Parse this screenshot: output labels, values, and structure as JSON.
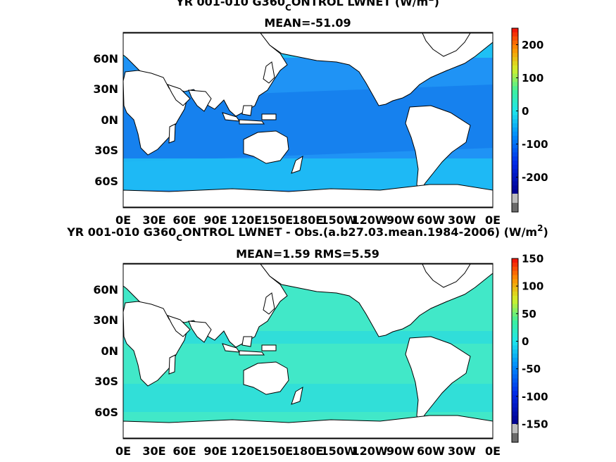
{
  "chart_data": [
    {
      "type": "heatmap",
      "title_prefix": "YR 001-010 G360",
      "title_sub": "C",
      "title_suffix": "ONTROL  LWNET (W/m",
      "title_sup": "2",
      "title_close": ")",
      "subtitle": "MEAN=-51.09",
      "x_ticks": [
        "0E",
        "30E",
        "60E",
        "90E",
        "120E",
        "150E",
        "180E",
        "150W",
        "120W",
        "90W",
        "60W",
        "30W",
        "0E"
      ],
      "y_ticks": [
        "60N",
        "30N",
        "0N",
        "30S",
        "60S"
      ],
      "colorbar": {
        "range": [
          -250,
          250
        ],
        "ticks": [
          {
            "value": 200,
            "label": "200"
          },
          {
            "value": 100,
            "label": "100"
          },
          {
            "value": 0,
            "label": "0"
          },
          {
            "value": -100,
            "label": "-100"
          },
          {
            "value": -200,
            "label": "-200"
          }
        ]
      },
      "colors": {
        "ocean_main": "#1f93f5",
        "ocean_light": "#1ec0f5",
        "ocean_dark": "#0f73e8",
        "land": "#ffffff"
      },
      "regions": [
        {
          "band": "Arctic / high northern latitudes",
          "approx_value": -60
        },
        {
          "band": "Mid and low latitude oceans",
          "approx_value": -75
        },
        {
          "band": "Southern Ocean",
          "approx_value": -45
        },
        {
          "band": "Antarctic margin",
          "approx_value": -40
        }
      ]
    },
    {
      "type": "heatmap",
      "title_prefix": "YR 001-010 G360",
      "title_sub": "C",
      "title_suffix": "ONTROL LWNET - Obs.(a.b27.03.mean.1984-2006) (W/m",
      "title_sup": "2",
      "title_close": ")",
      "subtitle": "MEAN=1.59 RMS=5.59",
      "x_ticks": [
        "0E",
        "30E",
        "60E",
        "90E",
        "120E",
        "150E",
        "180E",
        "150W",
        "120W",
        "90W",
        "60W",
        "30W",
        "0E"
      ],
      "y_ticks": [
        "60N",
        "30N",
        "0N",
        "30S",
        "60S"
      ],
      "colorbar": {
        "range": [
          -150,
          150
        ],
        "ticks": [
          {
            "value": 150,
            "label": "150"
          },
          {
            "value": 100,
            "label": "100"
          },
          {
            "value": 50,
            "label": "50"
          },
          {
            "value": 0,
            "label": "0"
          },
          {
            "value": -50,
            "label": "-50"
          },
          {
            "value": -100,
            "label": "-100"
          },
          {
            "value": -150,
            "label": "-150"
          }
        ]
      },
      "colors": {
        "ocean_main": "#41e8c8",
        "ocean_alt": "#20d4ea",
        "land": "#ffffff"
      },
      "regions": [
        {
          "band": "Global ocean",
          "approx_value": 2
        },
        {
          "band": "Southern Ocean",
          "approx_value": -3
        }
      ]
    }
  ]
}
